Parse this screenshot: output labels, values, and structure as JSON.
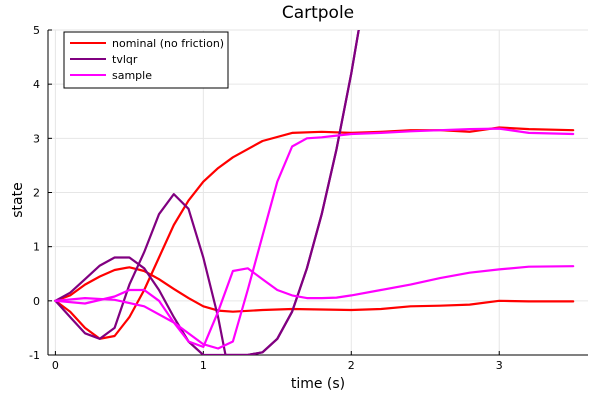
{
  "chart_data": {
    "type": "line",
    "title": "Cartpole",
    "xlabel": "time (s)",
    "ylabel": "state",
    "xlim": [
      -0.05,
      3.6
    ],
    "ylim": [
      -1,
      5
    ],
    "xticks": [
      0,
      1,
      2,
      3
    ],
    "yticks": [
      -1,
      0,
      1,
      2,
      3,
      4,
      5
    ],
    "grid": true,
    "legend_position": "top-left",
    "series": [
      {
        "name": "nominal (no friction)",
        "color": "#ff0000",
        "components": [
          {
            "x": [
              0,
              0.1,
              0.2,
              0.3,
              0.4,
              0.5,
              0.6,
              0.7,
              0.8,
              0.9,
              1.0,
              1.1,
              1.2,
              1.4,
              1.6,
              1.8,
              2.0,
              2.2,
              2.4,
              2.6,
              2.8,
              3.0,
              3.2,
              3.5
            ],
            "y": [
              0,
              -0.2,
              -0.5,
              -0.7,
              -0.65,
              -0.3,
              0.2,
              0.8,
              1.4,
              1.85,
              2.2,
              2.45,
              2.65,
              2.95,
              3.1,
              3.12,
              3.1,
              3.12,
              3.15,
              3.15,
              3.12,
              3.2,
              3.17,
              3.15
            ]
          },
          {
            "x": [
              0,
              0.1,
              0.2,
              0.3,
              0.4,
              0.5,
              0.6,
              0.7,
              0.8,
              0.9,
              1.0,
              1.1,
              1.2,
              1.4,
              1.6,
              1.8,
              2.0,
              2.2,
              2.4,
              2.6,
              2.8,
              3.0,
              3.2,
              3.5
            ],
            "y": [
              0,
              0.1,
              0.3,
              0.45,
              0.57,
              0.62,
              0.55,
              0.4,
              0.22,
              0.05,
              -0.1,
              -0.18,
              -0.2,
              -0.17,
              -0.15,
              -0.16,
              -0.17,
              -0.15,
              -0.1,
              -0.09,
              -0.07,
              0,
              -0.01,
              -0.01
            ]
          }
        ]
      },
      {
        "name": "tvlqr",
        "color": "#800080",
        "components": [
          {
            "x": [
              0,
              0.1,
              0.2,
              0.3,
              0.4,
              0.5,
              0.6,
              0.7,
              0.8,
              0.9,
              1.0,
              1.1,
              1.15,
              1.2,
              1.3,
              1.4,
              1.5,
              1.6,
              1.7,
              1.8,
              1.9,
              2.0,
              2.05
            ],
            "y": [
              0,
              -0.3,
              -0.6,
              -0.7,
              -0.5,
              0.3,
              0.9,
              1.6,
              1.97,
              1.7,
              0.8,
              -0.3,
              -1.0,
              -1.0,
              -1.0,
              -0.95,
              -0.7,
              -0.2,
              0.6,
              1.6,
              2.8,
              4.2,
              5.0
            ]
          },
          {
            "x": [
              0,
              0.1,
              0.2,
              0.3,
              0.4,
              0.5,
              0.6,
              0.7,
              0.8,
              0.9,
              1.0,
              1.1,
              1.2,
              1.3,
              1.4,
              1.5,
              1.6,
              1.7,
              1.8,
              1.9,
              2.0,
              2.05
            ],
            "y": [
              0,
              0.15,
              0.4,
              0.65,
              0.8,
              0.8,
              0.6,
              0.2,
              -0.3,
              -0.75,
              -1.0,
              -1.0,
              -1.0,
              -1.0,
              -0.95,
              -0.7,
              -0.2,
              0.6,
              1.6,
              2.8,
              4.2,
              5.0
            ]
          }
        ]
      },
      {
        "name": "sample",
        "color": "#ff00ff",
        "components": [
          {
            "x": [
              0,
              0.2,
              0.4,
              0.6,
              0.8,
              1.0,
              1.1,
              1.2,
              1.3,
              1.4,
              1.5,
              1.6,
              1.7,
              1.8,
              1.9,
              2.0,
              2.2,
              2.4,
              2.6,
              2.8,
              3.0,
              3.2,
              3.5
            ],
            "y": [
              0,
              0.05,
              0.02,
              -0.1,
              -0.4,
              -0.8,
              -0.88,
              -0.75,
              0.2,
              1.2,
              2.2,
              2.85,
              3.0,
              3.02,
              3.05,
              3.08,
              3.1,
              3.13,
              3.15,
              3.17,
              3.18,
              3.1,
              3.08
            ]
          },
          {
            "x": [
              0,
              0.2,
              0.4,
              0.5,
              0.6,
              0.7,
              0.8,
              0.9,
              1.0,
              1.1,
              1.2,
              1.3,
              1.4,
              1.5,
              1.6,
              1.7,
              1.8,
              1.9,
              2.0,
              2.2,
              2.4,
              2.6,
              2.8,
              3.0,
              3.2,
              3.5
            ],
            "y": [
              0,
              -0.05,
              0.08,
              0.2,
              0.2,
              0.0,
              -0.4,
              -0.75,
              -0.85,
              -0.2,
              0.55,
              0.6,
              0.4,
              0.2,
              0.1,
              0.05,
              0.05,
              0.06,
              0.1,
              0.2,
              0.3,
              0.42,
              0.52,
              0.58,
              0.63,
              0.64
            ]
          }
        ]
      }
    ]
  }
}
